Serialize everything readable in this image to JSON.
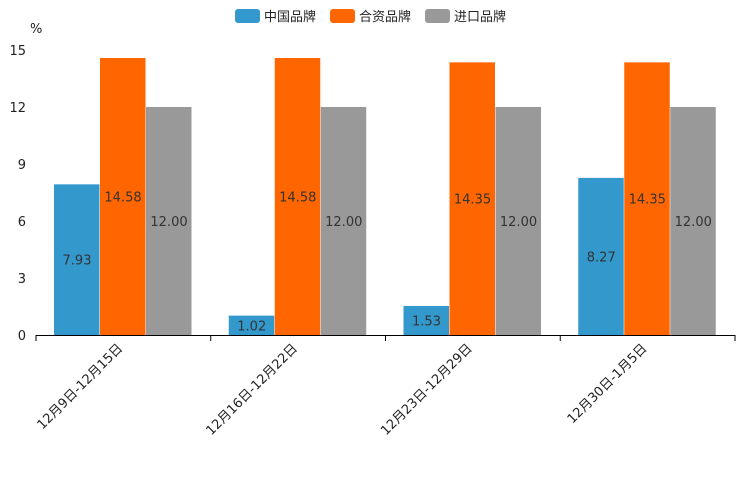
{
  "chart_data": {
    "type": "bar",
    "title": "",
    "xlabel": "",
    "ylabel": "%",
    "ylim": [
      0,
      15
    ],
    "yticks": [
      0,
      3,
      6,
      9,
      12,
      15
    ],
    "grid": false,
    "legend_position": "top-center",
    "categories": [
      "12月9日-12月15日",
      "12月16日-12月22日",
      "12月23日-12月29日",
      "12月30日-1月5日"
    ],
    "series": [
      {
        "name": "中国品牌",
        "color": "#3399cc",
        "values": [
          7.93,
          1.02,
          1.53,
          8.27
        ],
        "labels": [
          "7.93",
          "1.02",
          "1.53",
          "8.27"
        ]
      },
      {
        "name": "合资品牌",
        "color": "#ff6600",
        "values": [
          14.58,
          14.58,
          14.35,
          14.35
        ],
        "labels": [
          "14.58",
          "14.58",
          "14.35",
          "14.35"
        ]
      },
      {
        "name": "进口品牌",
        "color": "#999999",
        "values": [
          12.0,
          12.0,
          12.0,
          12.0
        ],
        "labels": [
          "12.00",
          "12.00",
          "12.00",
          "12.00"
        ]
      }
    ]
  }
}
